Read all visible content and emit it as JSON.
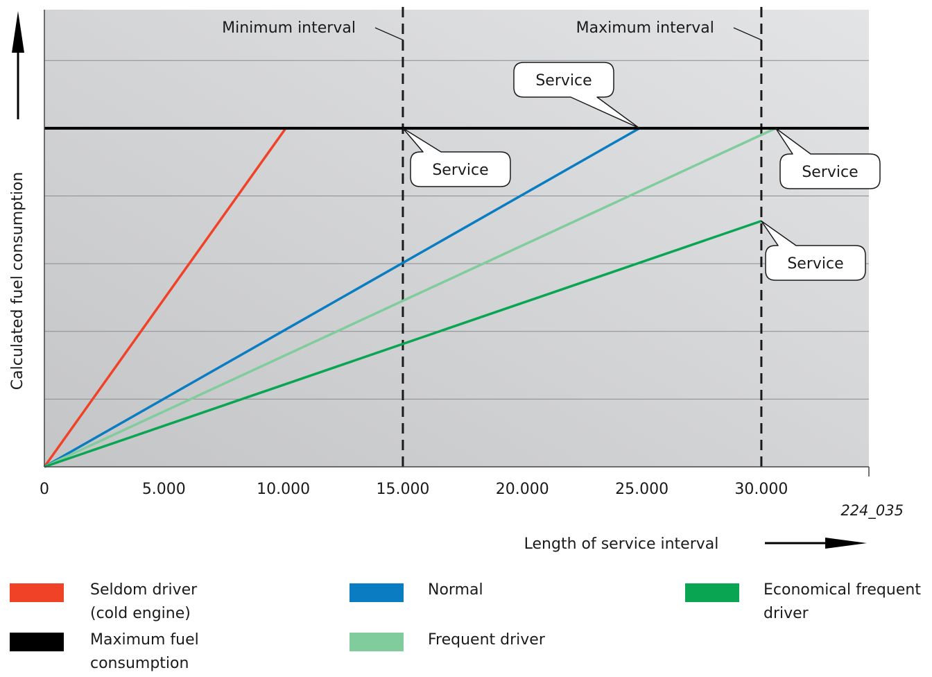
{
  "chart_data": {
    "type": "line",
    "figure_id": "224_035",
    "ylabel": "Calculated fuel consumption",
    "xlabel": "Length of service interval",
    "xlim": [
      0,
      34500
    ],
    "ylim": [
      0,
      6.75
    ],
    "grid": "horizontal",
    "x_ticks": [
      {
        "value": 0,
        "label": "0"
      },
      {
        "value": 5000,
        "label": "5.000"
      },
      {
        "value": 10000,
        "label": "10.000"
      },
      {
        "value": 15000,
        "label": "15.000"
      },
      {
        "value": 20000,
        "label": "20.000"
      },
      {
        "value": 25000,
        "label": "25.000"
      },
      {
        "value": 30000,
        "label": "30.000"
      }
    ],
    "reference_lines": [
      {
        "label": "Minimum interval",
        "x": 15000
      },
      {
        "label": "Maximum interval",
        "x": 30000
      }
    ],
    "max_consumption_y": 5,
    "series": [
      {
        "name": "Maximum fuel consumption",
        "color": "#000000",
        "x": [
          0,
          34500
        ],
        "y": [
          5,
          5
        ]
      },
      {
        "name": "Seldom driver\n(cold engine)",
        "color": "#ef4226",
        "x": [
          0,
          10100
        ],
        "y": [
          0,
          5
        ]
      },
      {
        "name": "Normal",
        "color": "#0a7cc2",
        "x": [
          0,
          24900
        ],
        "y": [
          0,
          5
        ]
      },
      {
        "name": "Frequent driver",
        "color": "#80cc9d",
        "x": [
          0,
          30600
        ],
        "y": [
          0,
          5
        ]
      },
      {
        "name": "Economical frequent\ndriver",
        "color": "#0aa553",
        "x": [
          0,
          30000
        ],
        "y": [
          0,
          3.63
        ]
      }
    ],
    "annotations": [
      {
        "text": "Service",
        "x": 15000,
        "y": 5
      },
      {
        "text": "Service",
        "x": 24900,
        "y": 5
      },
      {
        "text": "Service",
        "x": 30600,
        "y": 5
      },
      {
        "text": "Service",
        "x": 30000,
        "y": 3.63
      }
    ],
    "legend": [
      {
        "label": "Seldom driver\n(cold engine)",
        "color": "#ef4226"
      },
      {
        "label": "Maximum fuel\nconsumption",
        "color": "#000000"
      },
      {
        "label": "Normal",
        "color": "#0a7cc2"
      },
      {
        "label": "Frequent driver",
        "color": "#80cc9d"
      },
      {
        "label": "Economical frequent\ndriver",
        "color": "#0aa553"
      }
    ]
  }
}
